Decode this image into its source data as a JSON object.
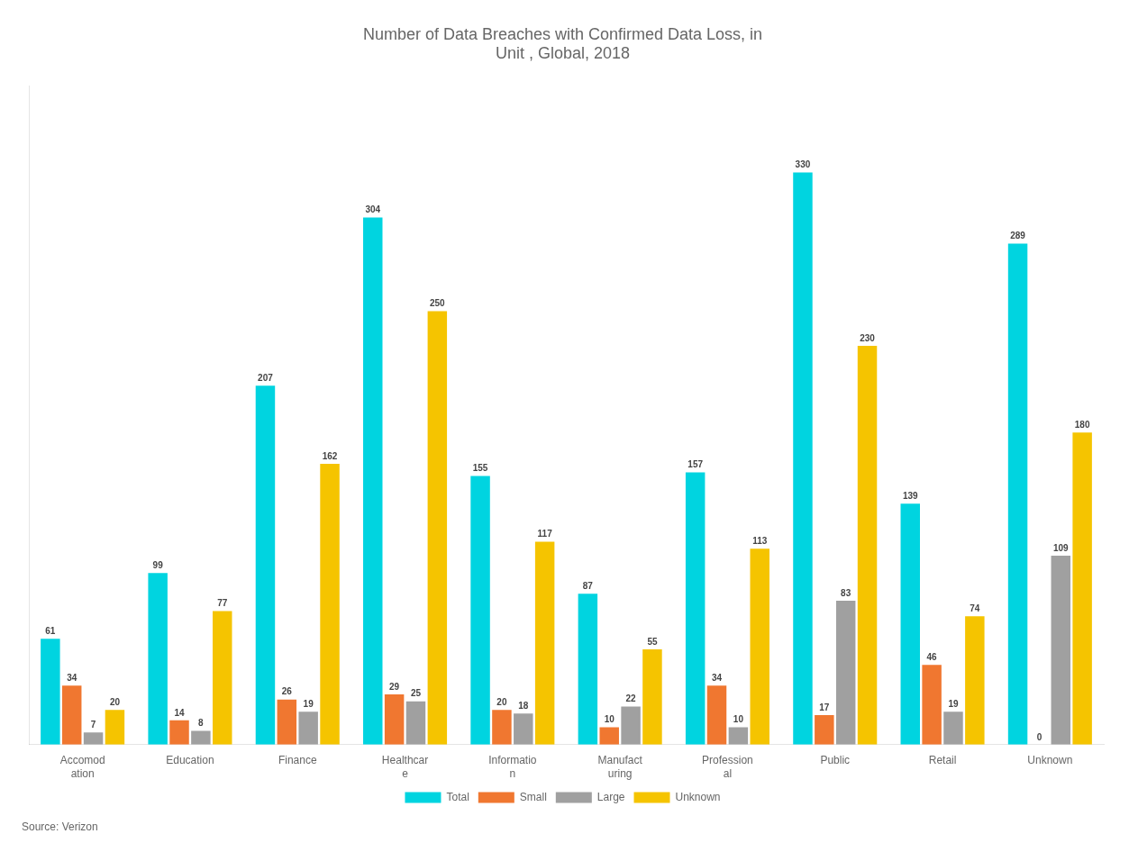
{
  "chart_data": {
    "type": "bar",
    "title": "Number of Data Breaches with Confirmed Data Loss, in\nUnit , Global, 2018",
    "categories": [
      "Accomod\nation",
      "Education",
      "Finance",
      "Healthcar\ne",
      "Informatio\nn",
      "Manufact\nuring",
      "Profession\nal",
      "Public",
      "Retail",
      "Unknown"
    ],
    "series": [
      {
        "name": "Total",
        "color": "#00D4E0",
        "values": [
          61,
          99,
          207,
          304,
          155,
          87,
          157,
          330,
          139,
          289
        ]
      },
      {
        "name": "Small",
        "color": "#F07730",
        "values": [
          34,
          14,
          26,
          29,
          20,
          10,
          34,
          17,
          46,
          0
        ]
      },
      {
        "name": "Large",
        "color": "#A0A0A0",
        "values": [
          7,
          8,
          19,
          25,
          18,
          22,
          10,
          83,
          19,
          109
        ]
      },
      {
        "name": "Unknown",
        "color": "#F5C400",
        "values": [
          20,
          77,
          162,
          250,
          117,
          55,
          113,
          230,
          74,
          180
        ]
      }
    ],
    "ylim": [
      0,
      380
    ],
    "grid": false,
    "legend": "bottom",
    "data_labels": true,
    "tick_labels": "x",
    "annotations": [
      "Source: Verizon"
    ]
  }
}
